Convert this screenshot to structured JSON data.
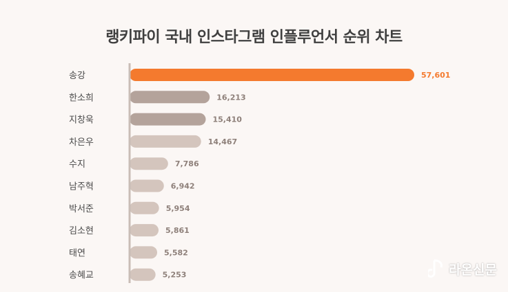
{
  "title": "랭키파이 국내 인스타그램 인플루언서 순위 차트",
  "watermark": "라온신문",
  "colors": {
    "background": "#fbf7f5",
    "highlight": "#f47a2e",
    "second_tier": "#b4a39b",
    "third_tier": "#d4c5bd",
    "axis": "#c9bdb6"
  },
  "chart_data": {
    "type": "bar",
    "orientation": "horizontal",
    "title": "랭키파이 국내 인스타그램 인플루언서 순위 차트",
    "categories": [
      "송강",
      "한소희",
      "지창욱",
      "차은우",
      "수지",
      "남주혁",
      "박서준",
      "김소현",
      "태연",
      "송혜교"
    ],
    "values": [
      57601,
      16213,
      15410,
      14467,
      7786,
      6942,
      5954,
      5861,
      5582,
      5253
    ],
    "value_labels": [
      "57,601",
      "16,213",
      "15,410",
      "14,467",
      "7,786",
      "6,942",
      "5,954",
      "5,861",
      "5,582",
      "5,253"
    ],
    "xlim": [
      0,
      57601
    ],
    "grid": false,
    "legend": "none"
  }
}
